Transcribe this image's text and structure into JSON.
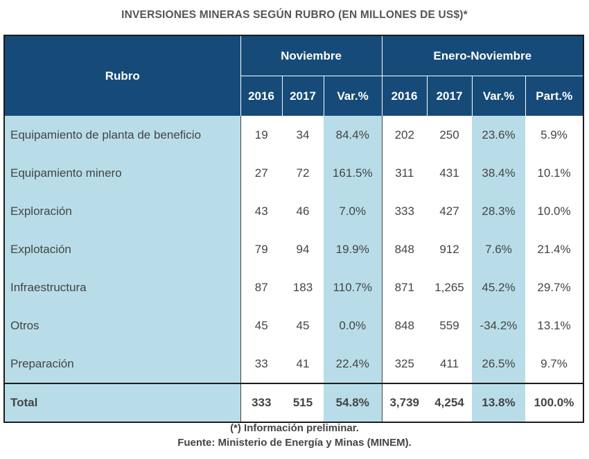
{
  "chart_data": {
    "type": "table",
    "title": "INVERSIONES MINERAS SEGÚN RUBRO (EN MILLONES DE US$)*",
    "header": {
      "rubro": "Rubro",
      "group_nov": "Noviembre",
      "group_ene": "Enero-Noviembre",
      "columns": [
        "2016",
        "2017",
        "Var.%",
        "2016",
        "2017",
        "Var.%",
        "Part.%"
      ]
    },
    "rows": [
      {
        "rubro": "Equipamiento de planta de beneficio",
        "cells": [
          "19",
          "34",
          "84.4%",
          "202",
          "250",
          "23.6%",
          "5.9%"
        ]
      },
      {
        "rubro": "Equipamiento minero",
        "cells": [
          "27",
          "72",
          "161.5%",
          "311",
          "431",
          "38.4%",
          "10.1%"
        ]
      },
      {
        "rubro": "Exploración",
        "cells": [
          "43",
          "46",
          "7.0%",
          "333",
          "427",
          "28.3%",
          "10.0%"
        ]
      },
      {
        "rubro": "Explotación",
        "cells": [
          "79",
          "94",
          "19.9%",
          "848",
          "912",
          "7.6%",
          "21.4%"
        ]
      },
      {
        "rubro": "Infraestructura",
        "cells": [
          "87",
          "183",
          "110.7%",
          "871",
          "1,265",
          "45.2%",
          "29.7%"
        ]
      },
      {
        "rubro": "Otros",
        "cells": [
          "45",
          "45",
          "0.0%",
          "848",
          "559",
          "-34.2%",
          "13.1%"
        ]
      },
      {
        "rubro": "Preparación",
        "cells": [
          "33",
          "41",
          "22.4%",
          "325",
          "411",
          "26.5%",
          "9.7%"
        ]
      }
    ],
    "total": {
      "rubro": "Total",
      "cells": [
        "333",
        "515",
        "54.8%",
        "3,739",
        "4,254",
        "13.8%",
        "100.0%"
      ]
    }
  },
  "colors": {
    "header_bg": "#164a78",
    "highlight_bg": "#b8dde8"
  },
  "footnotes": {
    "note": "(*) Información preliminar.",
    "source": "Fuente: Ministerio de Energía y Minas (MINEM)."
  }
}
